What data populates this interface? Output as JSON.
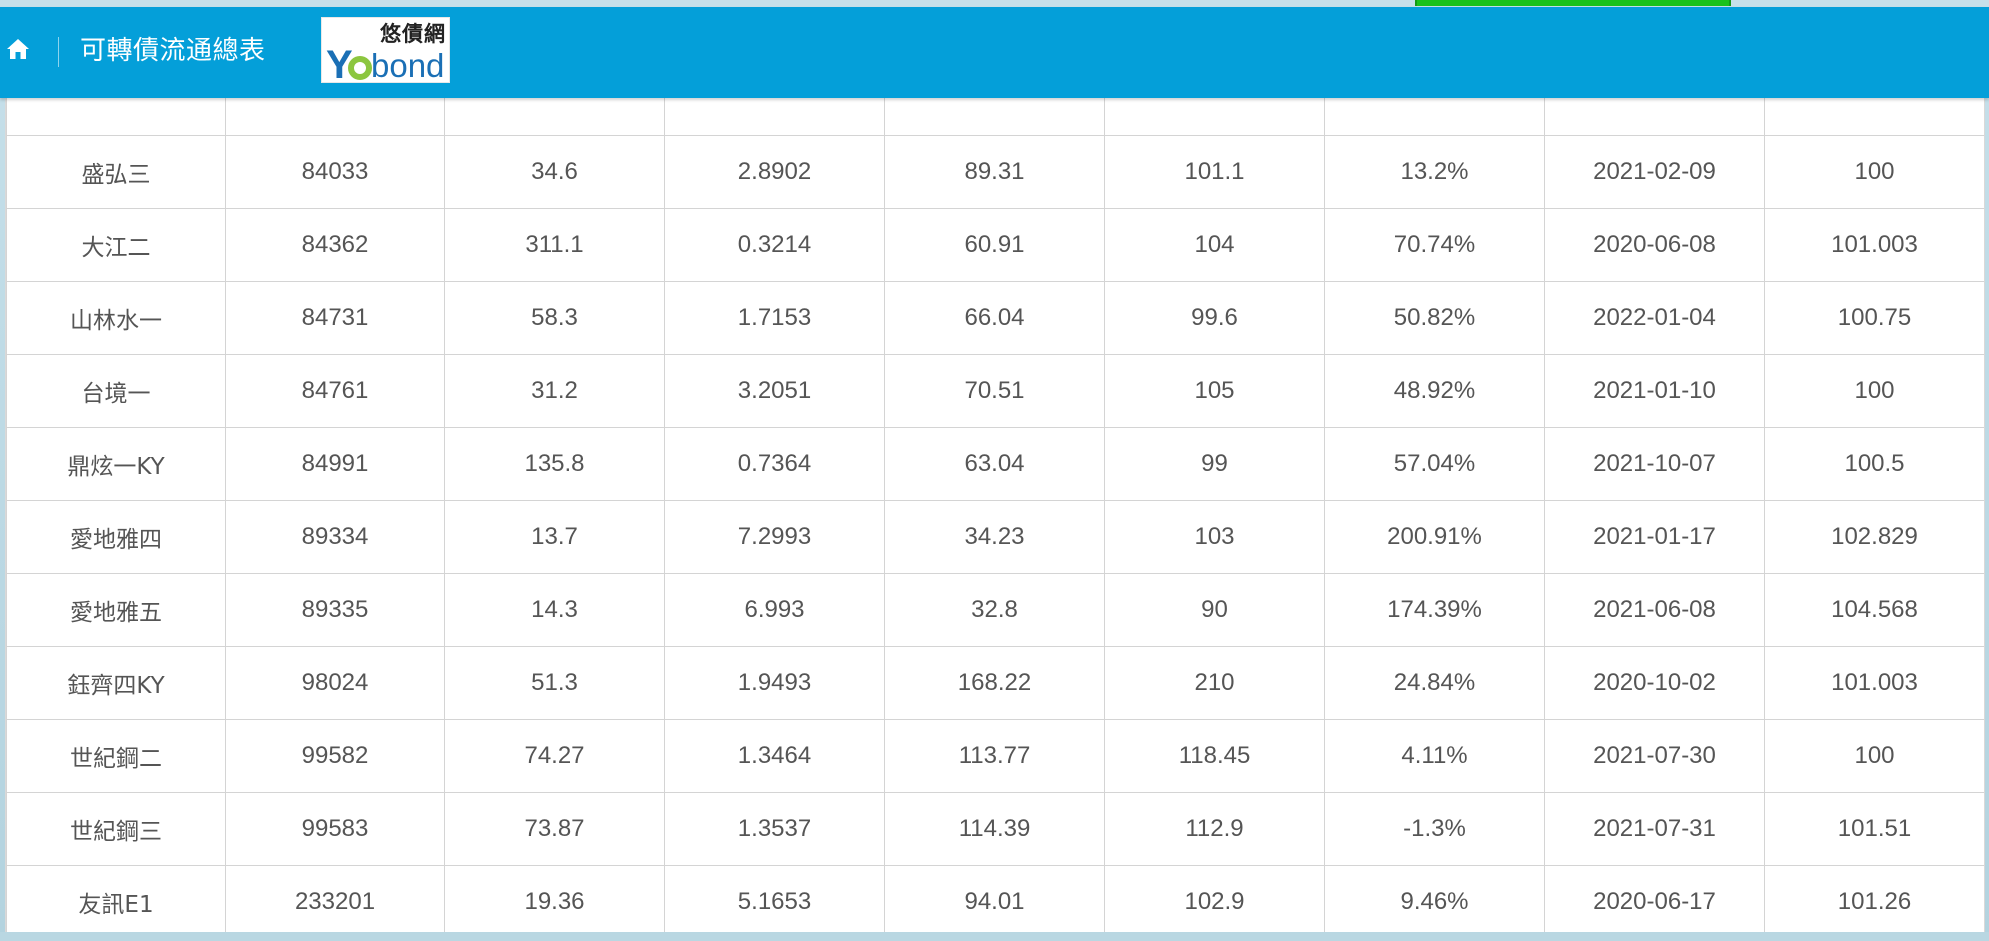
{
  "header": {
    "title": "可轉債流通總表",
    "home_icon": "home-icon",
    "logo": {
      "chinese": "悠債網",
      "brand": "Yobond"
    }
  },
  "colors": {
    "header_bg": "#049fd9",
    "accent_green": "#19c21b",
    "cell_text": "#555555",
    "grid_line": "#d4d4d4"
  },
  "table": {
    "rows": [
      [
        "盛弘三",
        "84033",
        "34.6",
        "2.8902",
        "89.31",
        "101.1",
        "13.2%",
        "2021-02-09",
        "100"
      ],
      [
        "大江二",
        "84362",
        "311.1",
        "0.3214",
        "60.91",
        "104",
        "70.74%",
        "2020-06-08",
        "101.003"
      ],
      [
        "山林水一",
        "84731",
        "58.3",
        "1.7153",
        "66.04",
        "99.6",
        "50.82%",
        "2022-01-04",
        "100.75"
      ],
      [
        "台境一",
        "84761",
        "31.2",
        "3.2051",
        "70.51",
        "105",
        "48.92%",
        "2021-01-10",
        "100"
      ],
      [
        "鼎炫一KY",
        "84991",
        "135.8",
        "0.7364",
        "63.04",
        "99",
        "57.04%",
        "2021-10-07",
        "100.5"
      ],
      [
        "愛地雅四",
        "89334",
        "13.7",
        "7.2993",
        "34.23",
        "103",
        "200.91%",
        "2021-01-17",
        "102.829"
      ],
      [
        "愛地雅五",
        "89335",
        "14.3",
        "6.993",
        "32.8",
        "90",
        "174.39%",
        "2021-06-08",
        "104.568"
      ],
      [
        "鈺齊四KY",
        "98024",
        "51.3",
        "1.9493",
        "168.22",
        "210",
        "24.84%",
        "2020-10-02",
        "101.003"
      ],
      [
        "世紀鋼二",
        "99582",
        "74.27",
        "1.3464",
        "113.77",
        "118.45",
        "4.11%",
        "2021-07-30",
        "100"
      ],
      [
        "世紀鋼三",
        "99583",
        "73.87",
        "1.3537",
        "114.39",
        "112.9",
        "-1.3%",
        "2021-07-31",
        "101.51"
      ],
      [
        "友訊E1",
        "233201",
        "19.36",
        "5.1653",
        "94.01",
        "102.9",
        "9.46%",
        "2020-06-17",
        "101.26"
      ]
    ]
  }
}
